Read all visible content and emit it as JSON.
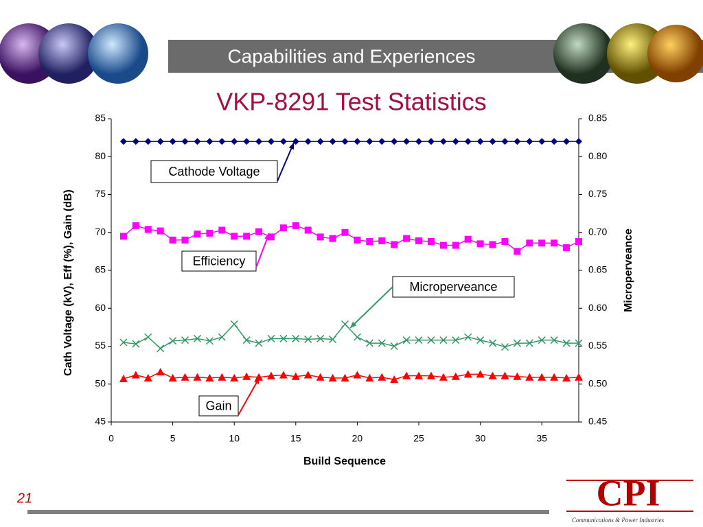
{
  "slide": {
    "header": "Capabilities and Experiences",
    "page_number": "21",
    "logo": "CPI",
    "logo_caption": "Communications & Power Industries"
  },
  "chart_data": {
    "type": "line",
    "title": "VKP-8291 Test Statistics",
    "x_label": "Build Sequence",
    "y_label": "Cath Voltage (kV), Eff (%), Gain (dB)",
    "y2_label": "Microperveance",
    "x": [
      1,
      2,
      3,
      4,
      5,
      6,
      7,
      8,
      9,
      10,
      11,
      12,
      13,
      14,
      15,
      16,
      17,
      18,
      19,
      20,
      21,
      22,
      23,
      24,
      25,
      26,
      27,
      28,
      29,
      30,
      31,
      32,
      33,
      34,
      35,
      36,
      37,
      38
    ],
    "xlim": [
      0,
      38
    ],
    "xticks": [
      0,
      5,
      10,
      15,
      20,
      25,
      30,
      35
    ],
    "ylim": [
      45,
      85
    ],
    "yticks": [
      45,
      50,
      55,
      60,
      65,
      70,
      75,
      80,
      85
    ],
    "y2lim": [
      0.45,
      0.85
    ],
    "y2ticks": [
      0.45,
      {
        "value": 0.5,
        "label": "0.50"
      },
      0.55,
      {
        "value": 0.6,
        "label": "0.60"
      },
      0.65,
      {
        "value": 0.7,
        "label": "0.70"
      },
      0.75,
      {
        "value": 0.8,
        "label": "0.80"
      },
      0.85
    ],
    "series": [
      {
        "name": "Cathode Voltage",
        "color": "#000080",
        "marker": "diamond",
        "values": [
          82,
          82,
          82,
          82,
          82,
          82,
          82,
          82,
          82,
          82,
          82,
          82,
          82,
          82,
          82,
          82,
          82,
          82,
          82,
          82,
          82,
          82,
          82,
          82,
          82,
          82,
          82,
          82,
          82,
          82,
          82,
          82,
          82,
          82,
          82,
          82,
          82,
          82
        ]
      },
      {
        "name": "Efficiency",
        "color": "#ff00ff",
        "marker": "square",
        "values": [
          69.5,
          70.9,
          70.4,
          70.2,
          69.0,
          69.0,
          69.8,
          69.9,
          70.3,
          69.5,
          69.5,
          70.1,
          69.4,
          70.6,
          70.9,
          70.3,
          69.4,
          69.2,
          70.0,
          69.0,
          68.8,
          68.9,
          68.4,
          69.2,
          68.9,
          68.8,
          68.3,
          68.3,
          69.1,
          68.5,
          68.4,
          68.8,
          67.5,
          68.6,
          68.6,
          68.6,
          68.0,
          68.8
        ]
      },
      {
        "name": "Microperveance",
        "color": "#339966",
        "marker": "x",
        "axis": "y2",
        "values": [
          0.555,
          0.553,
          0.562,
          0.547,
          0.557,
          0.558,
          0.56,
          0.557,
          0.562,
          0.579,
          0.558,
          0.554,
          0.56,
          0.56,
          0.56,
          0.559,
          0.56,
          0.559,
          0.579,
          0.562,
          0.554,
          0.554,
          0.55,
          0.558,
          0.558,
          0.558,
          0.558,
          0.558,
          0.562,
          0.558,
          0.554,
          0.549,
          0.554,
          0.554,
          0.558,
          0.558,
          0.554,
          0.554
        ]
      },
      {
        "name": "Gain",
        "color": "#ff0000",
        "marker": "triangle",
        "values": [
          50.7,
          51.2,
          50.8,
          51.6,
          50.8,
          50.9,
          50.9,
          50.8,
          50.9,
          50.8,
          51.0,
          50.9,
          51.1,
          51.2,
          51.0,
          51.2,
          50.9,
          50.8,
          50.8,
          51.2,
          50.8,
          50.9,
          50.6,
          51.1,
          51.1,
          51.1,
          50.9,
          51.0,
          51.3,
          51.3,
          51.1,
          51.1,
          51.0,
          50.9,
          50.9,
          50.9,
          50.8,
          50.9
        ]
      }
    ]
  }
}
